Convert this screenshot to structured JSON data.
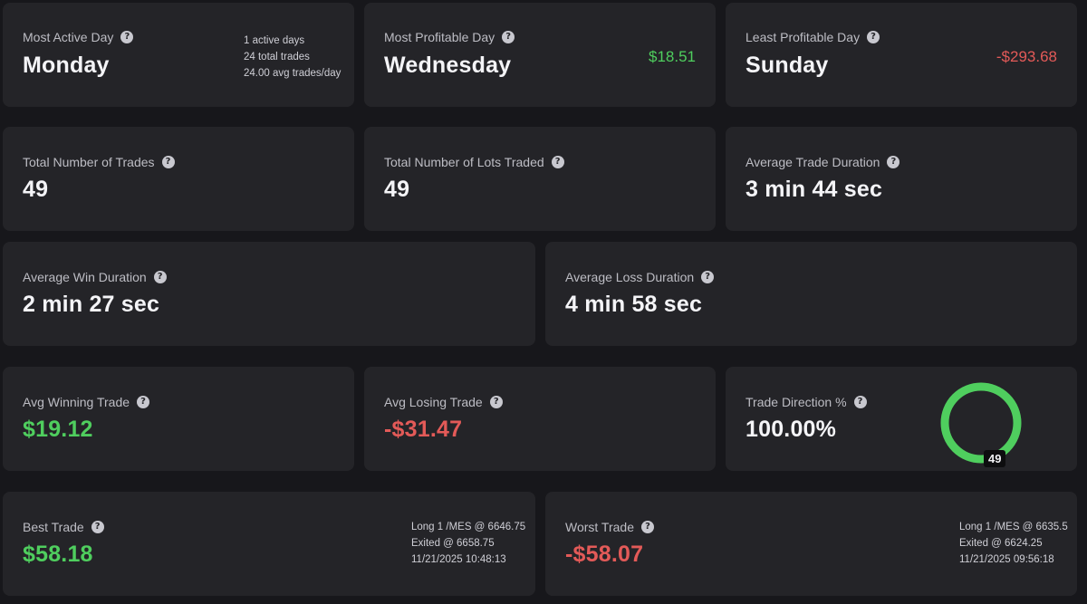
{
  "row1": {
    "most_active_day": {
      "label": "Most Active Day",
      "value": "Monday",
      "stats": [
        "1 active days",
        "24 total trades",
        "24.00 avg trades/day"
      ]
    },
    "most_profitable_day": {
      "label": "Most Profitable Day",
      "value": "Wednesday",
      "amount": "$18.51"
    },
    "least_profitable_day": {
      "label": "Least Profitable Day",
      "value": "Sunday",
      "amount": "-$293.68"
    }
  },
  "row2": {
    "total_trades": {
      "label": "Total Number of Trades",
      "value": "49"
    },
    "total_lots": {
      "label": "Total Number of Lots Traded",
      "value": "49"
    },
    "avg_trade_duration": {
      "label": "Average Trade Duration",
      "value": "3 min 44 sec"
    }
  },
  "row3": {
    "avg_win_duration": {
      "label": "Average Win Duration",
      "value": "2 min 27 sec"
    },
    "avg_loss_duration": {
      "label": "Average Loss Duration",
      "value": "4 min 58 sec"
    }
  },
  "row4": {
    "avg_winning_trade": {
      "label": "Avg Winning Trade",
      "value": "$19.12"
    },
    "avg_losing_trade": {
      "label": "Avg Losing Trade",
      "value": "-$31.47"
    },
    "trade_direction": {
      "label": "Trade Direction %",
      "value": "100.00%",
      "long_fraction": 1.0,
      "badge": "49"
    }
  },
  "row5": {
    "best_trade": {
      "label": "Best Trade",
      "value": "$58.18",
      "details": [
        "Long 1 /MES @ 6646.75",
        "Exited @ 6658.75",
        "11/21/2025 10:48:13"
      ]
    },
    "worst_trade": {
      "label": "Worst Trade",
      "value": "-$58.07",
      "details": [
        "Long 1 /MES @ 6635.5",
        "Exited @ 6624.25",
        "11/21/2025 09:56:18"
      ]
    }
  },
  "icons": {
    "help": "question-circle-icon"
  },
  "colors": {
    "background": "#17171b",
    "card": "#242428",
    "positive": "#4fce5e",
    "negative": "#e35a58",
    "donut_ring": "#4fce5e"
  }
}
